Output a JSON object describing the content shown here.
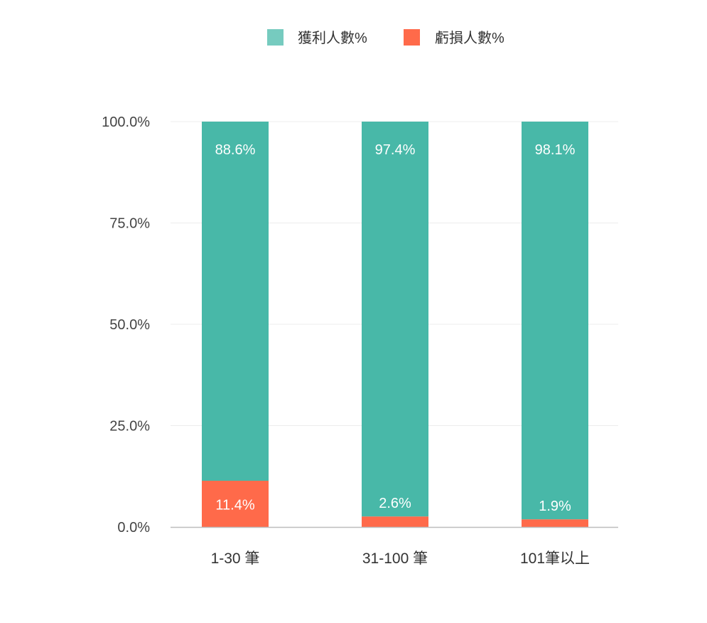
{
  "chart_data": {
    "type": "bar",
    "stacked": true,
    "categories": [
      "1-30 筆",
      "31-100 筆",
      "101筆以上"
    ],
    "series": [
      {
        "name": "虧損人數%",
        "values": [
          11.4,
          2.6,
          1.9
        ],
        "color": "#ff6a4a",
        "labels": [
          "11.4%",
          "2.6%",
          "1.9%"
        ]
      },
      {
        "name": "獲利人數%",
        "values": [
          88.6,
          97.4,
          98.1
        ],
        "color": "#48b8a8",
        "labels": [
          "88.6%",
          "97.4%",
          "98.1%"
        ]
      }
    ],
    "legend": {
      "position": "top-center",
      "items": [
        {
          "name": "獲利人數%",
          "color": "#76cbbf"
        },
        {
          "name": "虧損人數%",
          "color": "#ff6a4a"
        }
      ]
    },
    "yticks": [
      "0.0%",
      "25.0%",
      "50.0%",
      "75.0%",
      "100.0%"
    ],
    "ytick_values": [
      0,
      25,
      50,
      75,
      100
    ],
    "ylim": [
      0,
      100
    ],
    "grid": true
  }
}
